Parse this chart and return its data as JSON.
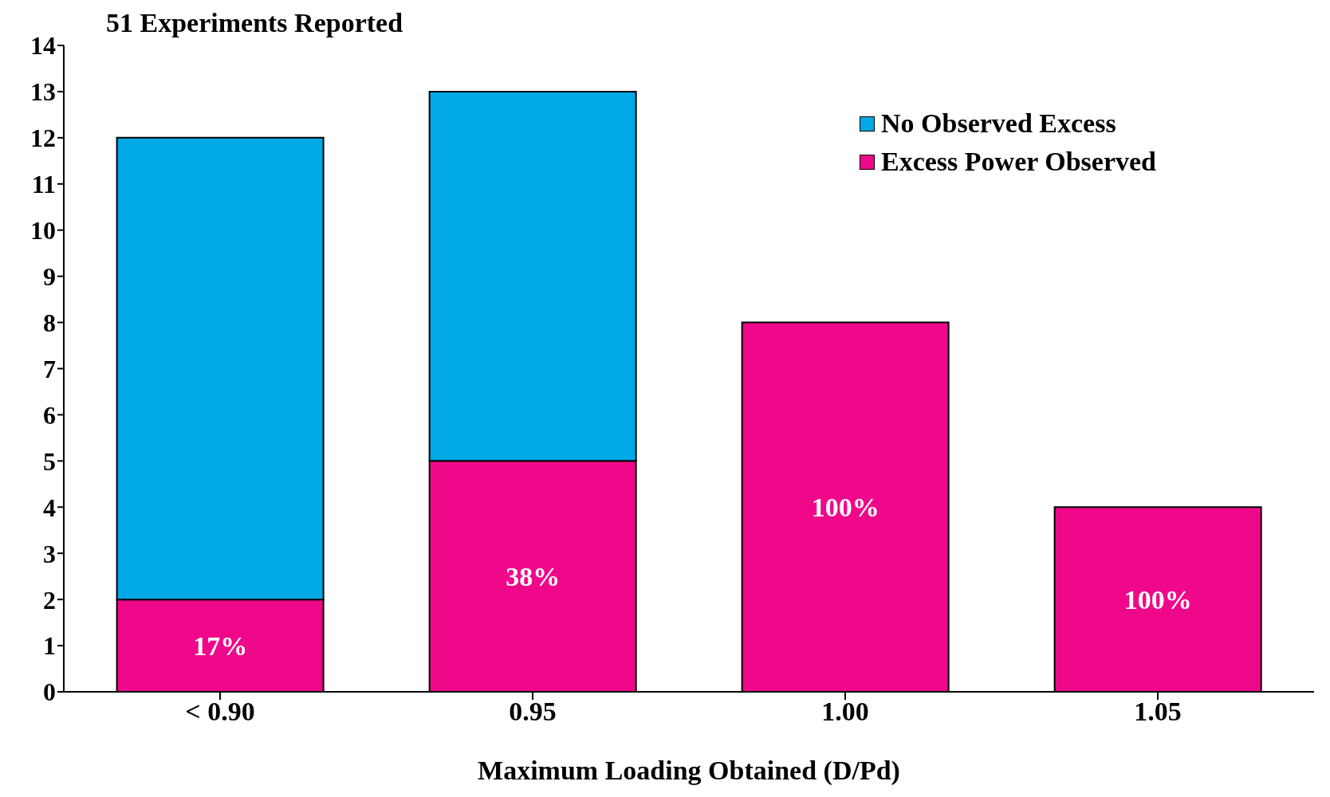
{
  "chart_data": {
    "type": "bar",
    "title": "51 Experiments Reported",
    "xlabel": "Maximum Loading Obtained (D/Pd)",
    "categories": [
      "< 0.90",
      "0.95",
      "1.00",
      "1.05"
    ],
    "series": [
      {
        "name": "Excess Power Observed",
        "color": "#f0088a",
        "values": [
          2,
          5,
          8,
          4
        ]
      },
      {
        "name": "No Observed Excess",
        "color": "#00a8e6",
        "values": [
          10,
          8,
          null,
          null
        ]
      }
    ],
    "annotations": [
      "17%",
      "38%",
      "100%",
      "100%"
    ],
    "stacked": true,
    "ylim": [
      0,
      14
    ],
    "yticks": [
      0,
      1,
      2,
      3,
      4,
      5,
      6,
      7,
      8,
      9,
      10,
      11,
      12,
      13,
      14
    ],
    "grid": false,
    "legend": "top right"
  }
}
